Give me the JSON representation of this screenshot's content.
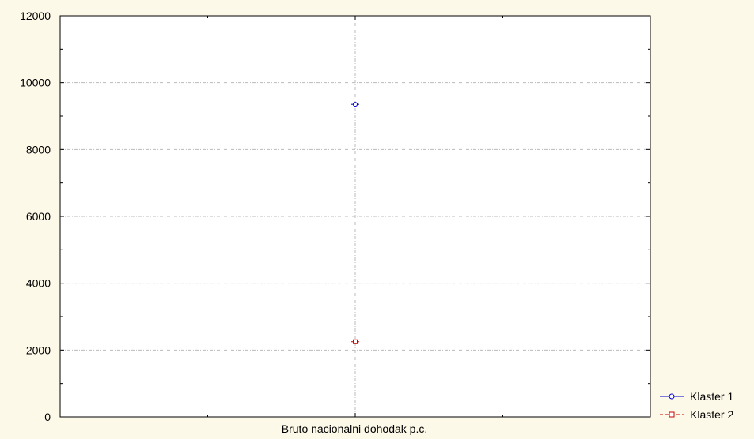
{
  "chart_data": {
    "type": "scatter",
    "categories": [
      "Bruto nacionalni dohodak p.c."
    ],
    "ylim": [
      0,
      12000
    ],
    "yticks": [
      0,
      2000,
      4000,
      6000,
      8000,
      10000,
      12000
    ],
    "grid": true,
    "legend_position": "bottom-right",
    "series": [
      {
        "name": "Klaster 1",
        "values": [
          9350
        ],
        "color": "#0000cc",
        "marker": "circle",
        "line": "solid"
      },
      {
        "name": "Klaster 2",
        "values": [
          2250
        ],
        "color": "#cc0000",
        "marker": "square",
        "line": "dashed"
      }
    ]
  }
}
